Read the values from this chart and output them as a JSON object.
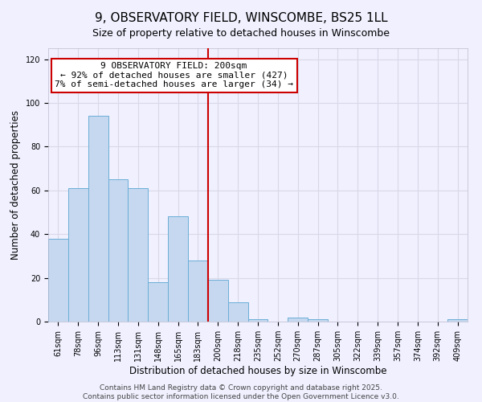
{
  "title": "9, OBSERVATORY FIELD, WINSCOMBE, BS25 1LL",
  "subtitle": "Size of property relative to detached houses in Winscombe",
  "xlabel": "Distribution of detached houses by size in Winscombe",
  "ylabel": "Number of detached properties",
  "bar_labels": [
    "61sqm",
    "78sqm",
    "96sqm",
    "113sqm",
    "131sqm",
    "148sqm",
    "165sqm",
    "183sqm",
    "200sqm",
    "218sqm",
    "235sqm",
    "252sqm",
    "270sqm",
    "287sqm",
    "305sqm",
    "322sqm",
    "339sqm",
    "357sqm",
    "374sqm",
    "392sqm",
    "409sqm"
  ],
  "bar_heights": [
    38,
    61,
    94,
    65,
    61,
    18,
    48,
    28,
    19,
    9,
    1,
    0,
    2,
    1,
    0,
    0,
    0,
    0,
    0,
    0,
    1
  ],
  "bar_color": "#c5d8f0",
  "bar_edge_color": "#6baed6",
  "vline_color": "#cc0000",
  "ylim": [
    0,
    125
  ],
  "yticks": [
    0,
    20,
    40,
    60,
    80,
    100,
    120
  ],
  "annotation_title": "9 OBSERVATORY FIELD: 200sqm",
  "annotation_line1": "← 92% of detached houses are smaller (427)",
  "annotation_line2": "7% of semi-detached houses are larger (34) →",
  "annotation_box_color": "#ffffff",
  "annotation_box_edge": "#cc0000",
  "background_color": "#f0f0ff",
  "grid_color": "#d8d8e8",
  "footer1": "Contains HM Land Registry data © Crown copyright and database right 2025.",
  "footer2": "Contains public sector information licensed under the Open Government Licence v3.0.",
  "title_fontsize": 11,
  "subtitle_fontsize": 9,
  "axis_label_fontsize": 8.5,
  "tick_fontsize": 7,
  "annotation_fontsize": 8,
  "footer_fontsize": 6.5
}
